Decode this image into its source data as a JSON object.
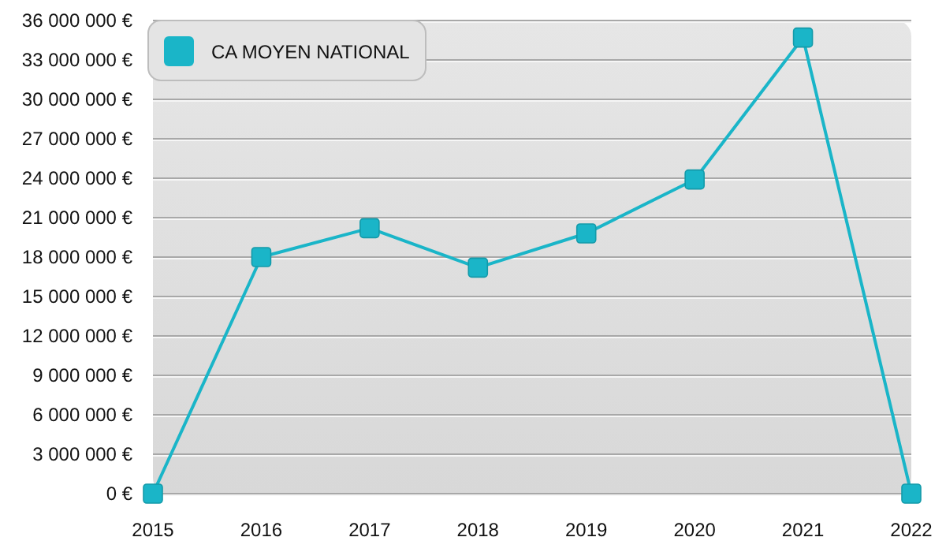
{
  "chart_data": {
    "type": "line",
    "categories": [
      "2015",
      "2016",
      "2017",
      "2018",
      "2019",
      "2020",
      "2021",
      "2022"
    ],
    "series": [
      {
        "name": "CA MOYEN NATIONAL",
        "color": "#1ab5c8",
        "values": [
          0,
          18000000,
          20200000,
          17200000,
          19800000,
          23900000,
          34700000,
          0
        ]
      }
    ],
    "ylim": [
      0,
      36000000
    ],
    "yticks": [
      {
        "value": 0,
        "label": "0 €"
      },
      {
        "value": 3000000,
        "label": "3 000 000 €"
      },
      {
        "value": 6000000,
        "label": "6 000 000 €"
      },
      {
        "value": 9000000,
        "label": "9 000 000 €"
      },
      {
        "value": 12000000,
        "label": "12 000 000 €"
      },
      {
        "value": 15000000,
        "label": "15 000 000 €"
      },
      {
        "value": 18000000,
        "label": "18 000 000 €"
      },
      {
        "value": 21000000,
        "label": "21 000 000 €"
      },
      {
        "value": 24000000,
        "label": "24 000 000 €"
      },
      {
        "value": 27000000,
        "label": "27 000 000 €"
      },
      {
        "value": 30000000,
        "label": "30 000 000 €"
      },
      {
        "value": 33000000,
        "label": "33 000 000 €"
      },
      {
        "value": 36000000,
        "label": "36 000 000 €"
      }
    ],
    "grid": "y",
    "legend": "top left",
    "marker": "square",
    "line_style": "solid"
  }
}
